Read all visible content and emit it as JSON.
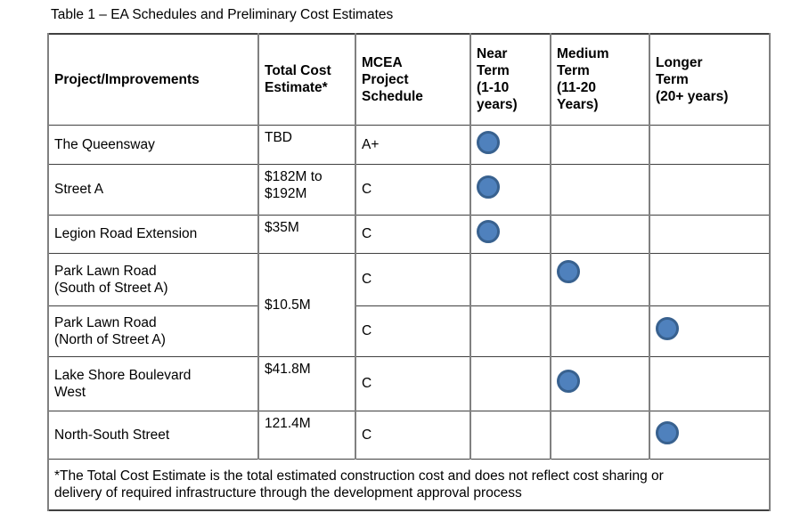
{
  "title": "Table 1 – EA Schedules and Preliminary Cost Estimates",
  "table": {
    "headers": [
      "Project/Improvements",
      "Total Cost\nEstimate*",
      "MCEA\nProject\nSchedule",
      "Near\nTerm\n(1-10\nyears)",
      "Medium\nTerm\n(11-20\nYears)",
      "Longer\nTerm\n(20+ years)"
    ],
    "rows": [
      {
        "project": "The Queensway",
        "cost": "TBD",
        "schedule": "A+",
        "term": "near"
      },
      {
        "project": "Street A",
        "cost": "$182M to\n$192M",
        "schedule": "C",
        "term": "near"
      },
      {
        "project": "Legion Road Extension",
        "cost": "$35M",
        "schedule": "C",
        "term": "near"
      },
      {
        "project": "Park Lawn Road\n(South of Street A)",
        "cost": "$10.5M",
        "cost_rowspan": 2,
        "schedule": "C",
        "term": "medium"
      },
      {
        "project": "Park Lawn Road\n(North of Street A)",
        "schedule": "C",
        "term": "longer"
      },
      {
        "project": "Lake Shore Boulevard\nWest",
        "cost": "$41.8M",
        "schedule": "C",
        "term": "medium"
      },
      {
        "project": "North-South Street",
        "cost": "121.4M",
        "schedule": "C",
        "term": "longer"
      }
    ],
    "term_columns": [
      "near",
      "medium",
      "longer"
    ],
    "footnote": "*The Total Cost Estimate is the total estimated construction cost and does not reflect cost sharing or\ndelivery of required infrastructure through the development approval process"
  },
  "dot": {
    "fill": "#4f81bd",
    "border": "#38618f"
  }
}
